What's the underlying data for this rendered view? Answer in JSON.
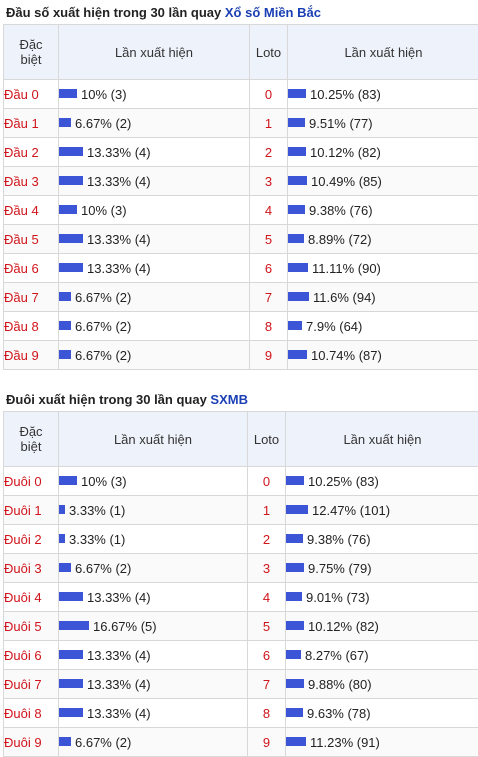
{
  "dau_section": {
    "title_prefix": "Đầu số xuất hiện trong 30 lần quay ",
    "title_link": "Xổ số Miền Bắc",
    "headers": {
      "special_line1": "Đặc",
      "special_line2": "biệt",
      "occurrences": "Lần xuất hiện",
      "loto": "Loto",
      "occurrences2": "Lần xuất hiện"
    },
    "rows": [
      {
        "label": "Đầu 0",
        "left_text": "10% (3)",
        "left_pct": 10,
        "loto": "0",
        "right_text": "10.25% (83)",
        "right_pct": 10.25
      },
      {
        "label": "Đầu 1",
        "left_text": "6.67% (2)",
        "left_pct": 6.67,
        "loto": "1",
        "right_text": "9.51% (77)",
        "right_pct": 9.51
      },
      {
        "label": "Đầu 2",
        "left_text": "13.33% (4)",
        "left_pct": 13.33,
        "loto": "2",
        "right_text": "10.12% (82)",
        "right_pct": 10.12
      },
      {
        "label": "Đầu 3",
        "left_text": "13.33% (4)",
        "left_pct": 13.33,
        "loto": "3",
        "right_text": "10.49% (85)",
        "right_pct": 10.49
      },
      {
        "label": "Đầu 4",
        "left_text": "10% (3)",
        "left_pct": 10,
        "loto": "4",
        "right_text": "9.38% (76)",
        "right_pct": 9.38
      },
      {
        "label": "Đầu 5",
        "left_text": "13.33% (4)",
        "left_pct": 13.33,
        "loto": "5",
        "right_text": "8.89% (72)",
        "right_pct": 8.89
      },
      {
        "label": "Đầu 6",
        "left_text": "13.33% (4)",
        "left_pct": 13.33,
        "loto": "6",
        "right_text": "11.11% (90)",
        "right_pct": 11.11
      },
      {
        "label": "Đầu 7",
        "left_text": "6.67% (2)",
        "left_pct": 6.67,
        "loto": "7",
        "right_text": "11.6% (94)",
        "right_pct": 11.6
      },
      {
        "label": "Đầu 8",
        "left_text": "6.67% (2)",
        "left_pct": 6.67,
        "loto": "8",
        "right_text": "7.9% (64)",
        "right_pct": 7.9
      },
      {
        "label": "Đầu 9",
        "left_text": "6.67% (2)",
        "left_pct": 6.67,
        "loto": "9",
        "right_text": "10.74% (87)",
        "right_pct": 10.74
      }
    ]
  },
  "duoi_section": {
    "title_prefix": "Đuôi xuất hiện trong 30 lần quay ",
    "title_link": "SXMB",
    "headers": {
      "special_line1": "Đặc",
      "special_line2": "biệt",
      "occurrences": "Lần xuất hiện",
      "loto": "Loto",
      "occurrences2": "Lần xuất hiện"
    },
    "rows": [
      {
        "label": "Đuôi 0",
        "left_text": "10% (3)",
        "left_pct": 10,
        "loto": "0",
        "right_text": "10.25% (83)",
        "right_pct": 10.25
      },
      {
        "label": "Đuôi 1",
        "left_text": "3.33% (1)",
        "left_pct": 3.33,
        "loto": "1",
        "right_text": "12.47% (101)",
        "right_pct": 12.47
      },
      {
        "label": "Đuôi 2",
        "left_text": "3.33% (1)",
        "left_pct": 3.33,
        "loto": "2",
        "right_text": "9.38% (76)",
        "right_pct": 9.38
      },
      {
        "label": "Đuôi 3",
        "left_text": "6.67% (2)",
        "left_pct": 6.67,
        "loto": "3",
        "right_text": "9.75% (79)",
        "right_pct": 9.75
      },
      {
        "label": "Đuôi 4",
        "left_text": "13.33% (4)",
        "left_pct": 13.33,
        "loto": "4",
        "right_text": "9.01% (73)",
        "right_pct": 9.01
      },
      {
        "label": "Đuôi 5",
        "left_text": "16.67% (5)",
        "left_pct": 16.67,
        "loto": "5",
        "right_text": "10.12% (82)",
        "right_pct": 10.12
      },
      {
        "label": "Đuôi 6",
        "left_text": "13.33% (4)",
        "left_pct": 13.33,
        "loto": "6",
        "right_text": "8.27% (67)",
        "right_pct": 8.27
      },
      {
        "label": "Đuôi 7",
        "left_text": "13.33% (4)",
        "left_pct": 13.33,
        "loto": "7",
        "right_text": "9.88% (80)",
        "right_pct": 9.88
      },
      {
        "label": "Đuôi 8",
        "left_text": "13.33% (4)",
        "left_pct": 13.33,
        "loto": "8",
        "right_text": "9.63% (78)",
        "right_pct": 9.63
      },
      {
        "label": "Đuôi 9",
        "left_text": "6.67% (2)",
        "left_pct": 6.67,
        "loto": "9",
        "right_text": "11.23% (91)",
        "right_pct": 11.23
      }
    ]
  },
  "colors": {
    "bar": "#3b55d6",
    "label": "#d0141b",
    "link": "#1a3fb4"
  }
}
